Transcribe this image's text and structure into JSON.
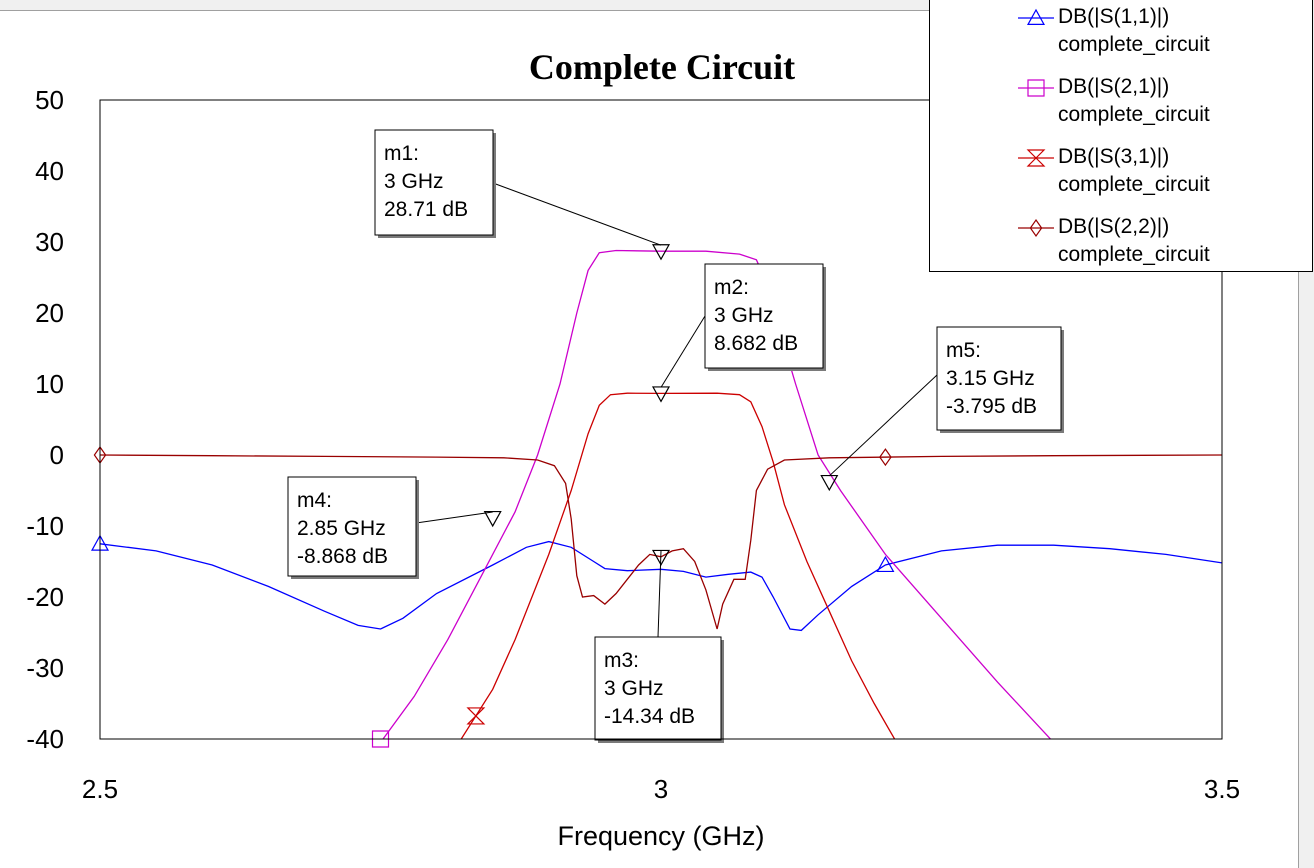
{
  "chart_data": {
    "type": "line",
    "title": "Complete Circuit",
    "xlabel": "Frequency (GHz)",
    "ylabel": "",
    "xlim": [
      2.5,
      3.5
    ],
    "ylim": [
      -40,
      50
    ],
    "x_ticks": [
      "2.5",
      "3",
      "3.5"
    ],
    "y_ticks": [
      "50",
      "40",
      "30",
      "20",
      "10",
      "0",
      "-10",
      "-20",
      "-30",
      "-40"
    ],
    "grid": true,
    "legend_position": "top-right",
    "series": [
      {
        "name": "DB(|S(1,1)|)",
        "subtitle": "complete_circuit",
        "color": "#0000ff",
        "marker": "triangle-up",
        "marker_x": [
          2.5,
          3.2
        ],
        "points": [
          [
            2.5,
            -12.5
          ],
          [
            2.55,
            -13.5
          ],
          [
            2.6,
            -15.5
          ],
          [
            2.65,
            -18.5
          ],
          [
            2.7,
            -22
          ],
          [
            2.73,
            -24
          ],
          [
            2.75,
            -24.5
          ],
          [
            2.77,
            -23
          ],
          [
            2.8,
            -19.5
          ],
          [
            2.85,
            -15.5
          ],
          [
            2.88,
            -13
          ],
          [
            2.9,
            -12.2
          ],
          [
            2.92,
            -13
          ],
          [
            2.94,
            -15
          ],
          [
            2.95,
            -16
          ],
          [
            2.97,
            -16.3
          ],
          [
            3.0,
            -16.1
          ],
          [
            3.02,
            -16.4
          ],
          [
            3.04,
            -17.2
          ],
          [
            3.06,
            -16.8
          ],
          [
            3.08,
            -16.5
          ],
          [
            3.09,
            -17.2
          ],
          [
            3.1,
            -20
          ],
          [
            3.115,
            -24.5
          ],
          [
            3.125,
            -24.7
          ],
          [
            3.14,
            -22.5
          ],
          [
            3.17,
            -18.5
          ],
          [
            3.2,
            -15.5
          ],
          [
            3.25,
            -13.5
          ],
          [
            3.3,
            -12.7
          ],
          [
            3.35,
            -12.7
          ],
          [
            3.4,
            -13.2
          ],
          [
            3.45,
            -14
          ],
          [
            3.5,
            -15.2
          ]
        ]
      },
      {
        "name": "DB(|S(2,1)|)",
        "subtitle": "complete_circuit",
        "color": "#cc00cc",
        "marker": "square",
        "marker_x": [
          2.75
        ],
        "points": [
          [
            2.75,
            -40.5
          ],
          [
            2.78,
            -34
          ],
          [
            2.81,
            -26
          ],
          [
            2.84,
            -17
          ],
          [
            2.87,
            -8
          ],
          [
            2.89,
            0
          ],
          [
            2.91,
            10
          ],
          [
            2.925,
            20
          ],
          [
            2.935,
            26
          ],
          [
            2.945,
            28.5
          ],
          [
            2.96,
            28.8
          ],
          [
            3.0,
            28.71
          ],
          [
            3.04,
            28.7
          ],
          [
            3.07,
            28.3
          ],
          [
            3.085,
            27.5
          ],
          [
            3.095,
            24
          ],
          [
            3.105,
            18
          ],
          [
            3.12,
            10
          ],
          [
            3.14,
            0
          ],
          [
            3.16,
            -5
          ],
          [
            3.2,
            -14
          ],
          [
            3.25,
            -23
          ],
          [
            3.3,
            -32
          ],
          [
            3.35,
            -40.5
          ]
        ]
      },
      {
        "name": "DB(|S(3,1)|)",
        "subtitle": "complete_circuit",
        "color": "#cc0000",
        "marker": "hourglass",
        "marker_x": [
          2.835
        ],
        "points": [
          [
            2.82,
            -40.5
          ],
          [
            2.85,
            -33
          ],
          [
            2.87,
            -26
          ],
          [
            2.9,
            -14
          ],
          [
            2.92,
            -5
          ],
          [
            2.935,
            3
          ],
          [
            2.945,
            7
          ],
          [
            2.955,
            8.5
          ],
          [
            2.97,
            8.7
          ],
          [
            3.0,
            8.682
          ],
          [
            3.05,
            8.7
          ],
          [
            3.07,
            8.5
          ],
          [
            3.08,
            7.5
          ],
          [
            3.09,
            4
          ],
          [
            3.1,
            -1
          ],
          [
            3.11,
            -7
          ],
          [
            3.13,
            -15
          ],
          [
            3.15,
            -22
          ],
          [
            3.17,
            -29
          ],
          [
            3.19,
            -35
          ],
          [
            3.21,
            -40.5
          ]
        ]
      },
      {
        "name": "DB(|S(2,2)|)",
        "subtitle": "complete_circuit",
        "color": "#990000",
        "marker": "diamond",
        "marker_x": [
          2.5,
          3.2
        ],
        "points": [
          [
            2.5,
            0
          ],
          [
            2.6,
            -0.1
          ],
          [
            2.7,
            -0.2
          ],
          [
            2.8,
            -0.3
          ],
          [
            2.86,
            -0.4
          ],
          [
            2.89,
            -0.7
          ],
          [
            2.905,
            -1.5
          ],
          [
            2.915,
            -4
          ],
          [
            2.92,
            -9
          ],
          [
            2.925,
            -17
          ],
          [
            2.93,
            -20
          ],
          [
            2.94,
            -19.8
          ],
          [
            2.95,
            -21
          ],
          [
            2.96,
            -19.5
          ],
          [
            2.97,
            -17.5
          ],
          [
            2.98,
            -15.5
          ],
          [
            2.99,
            -14
          ],
          [
            3.0,
            -14.34
          ],
          [
            3.01,
            -13.5
          ],
          [
            3.02,
            -13.2
          ],
          [
            3.03,
            -15
          ],
          [
            3.04,
            -19
          ],
          [
            3.05,
            -24.5
          ],
          [
            3.055,
            -21
          ],
          [
            3.065,
            -17.5
          ],
          [
            3.075,
            -17.5
          ],
          [
            3.08,
            -12
          ],
          [
            3.085,
            -5
          ],
          [
            3.095,
            -2
          ],
          [
            3.11,
            -0.7
          ],
          [
            3.15,
            -0.4
          ],
          [
            3.25,
            -0.2
          ],
          [
            3.35,
            -0.1
          ],
          [
            3.5,
            0
          ]
        ]
      }
    ],
    "markers": [
      {
        "label": "m1:",
        "freq": "3 GHz",
        "value": "28.71 dB",
        "x": 3.0,
        "y": 28.71
      },
      {
        "label": "m2:",
        "freq": "3 GHz",
        "value": "8.682 dB",
        "x": 3.0,
        "y": 8.682
      },
      {
        "label": "m3:",
        "freq": "3 GHz",
        "value": "-14.34 dB",
        "x": 3.0,
        "y": -14.34
      },
      {
        "label": "m4:",
        "freq": "2.85 GHz",
        "value": "-8.868 dB",
        "x": 2.85,
        "y": -8.868
      },
      {
        "label": "m5:",
        "freq": "3.15 GHz",
        "value": "-3.795 dB",
        "x": 3.15,
        "y": -3.795
      }
    ]
  }
}
